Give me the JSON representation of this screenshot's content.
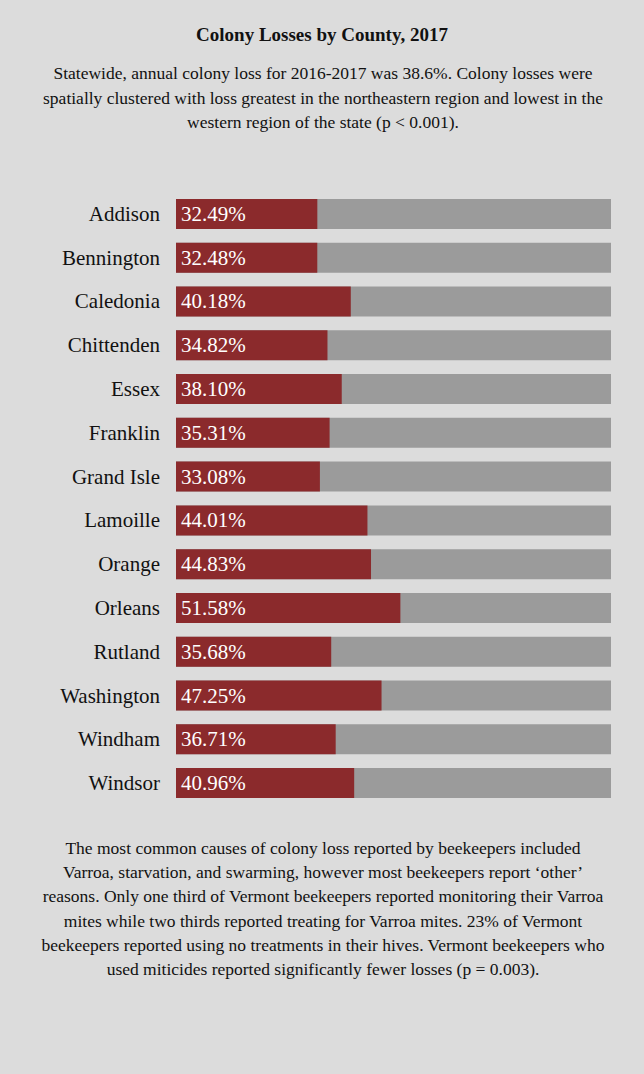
{
  "chart_data": {
    "type": "bar",
    "orientation": "horizontal",
    "title": "Colony Losses by County, 2017",
    "subtitle": "Statewide, annual colony loss for 2016-2017 was 38.6%. Colony losses were spatially clustered with loss greatest in the northeastern region and lowest in the western region of the state (p < 0.001).",
    "annotations": [
      "The most common causes of colony loss reported by beekeepers included Varroa, starvation, and swarming, however most beekeepers report ‘other’ reasons. Only one third of Vermont beekeepers reported monitoring their Varroa mites while two thirds reported treating for Varroa mites. 23% of Vermont beekeepers reported using no treatments in their hives. Vermont beekeepers who used miticides reported significantly fewer losses (p = 0.003)."
    ],
    "categories": [
      "Addison",
      "Bennington",
      "Caledonia",
      "Chittenden",
      "Essex",
      "Franklin",
      "Grand Isle",
      "Lamoille",
      "Orange",
      "Orleans",
      "Rutland",
      "Washington",
      "Windham",
      "Windsor"
    ],
    "values": [
      32.49,
      32.48,
      40.18,
      34.82,
      38.1,
      35.31,
      33.08,
      44.01,
      44.83,
      51.58,
      35.68,
      47.25,
      36.71,
      40.96
    ],
    "value_labels": [
      "32.49%",
      "32.48%",
      "40.18%",
      "34.82%",
      "38.10%",
      "35.31%",
      "33.08%",
      "44.01%",
      "44.83%",
      "51.58%",
      "35.68%",
      "47.25%",
      "36.71%",
      "40.96%"
    ],
    "color": "#8b2a2c",
    "xlim": [
      0,
      100
    ],
    "data_labels": true,
    "tick_labels": "y",
    "grid": false
  }
}
